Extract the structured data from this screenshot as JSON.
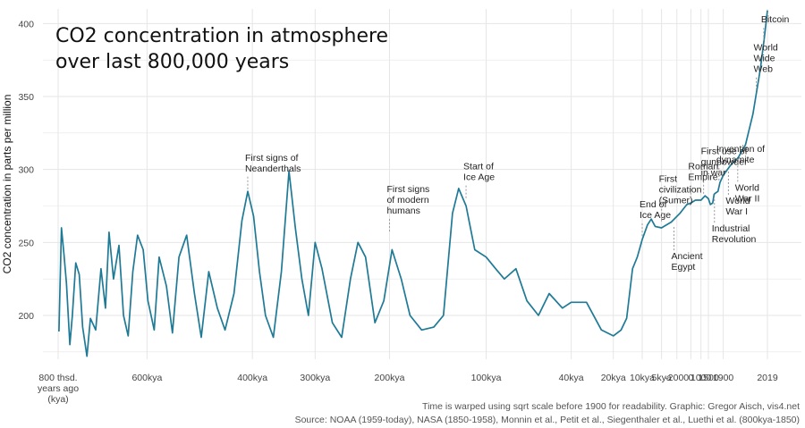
{
  "title_lines": [
    "CO2 concentration in atmosphere",
    "over last 800,000 years"
  ],
  "notes": {
    "line1": "Time is warped using sqrt scale before 1900 for readability. Graphic: Gregor Aisch, vis4.net",
    "line2": "Source: NOAA (1959-today), NASA (1850-1958), Monnin et al., Petit et al., Siegenthaler et al., Luethi et al. (800kya-1850)"
  },
  "colors": {
    "line": "#1f7a96",
    "grid": "#e6e6e6",
    "annotation_leader": "#999999"
  },
  "chart_data": {
    "type": "line",
    "title": "CO2 concentration in atmosphere over last 800,000 years",
    "xlabel": "",
    "ylabel": "CO2 concentration in parts per million",
    "ylim": [
      170,
      410
    ],
    "yticks": [
      200,
      250,
      300,
      350,
      400
    ],
    "grid": true,
    "x_scale_note": "sqrt scale of years before 1900, linear after 1900",
    "xticks": [
      {
        "x": -800000,
        "label": [
          "800 thsd.",
          "years ago",
          "(kya)"
        ]
      },
      {
        "x": -600000,
        "label": [
          "600kya"
        ]
      },
      {
        "x": -400000,
        "label": [
          "400kya"
        ]
      },
      {
        "x": -300000,
        "label": [
          "300kya"
        ]
      },
      {
        "x": -200000,
        "label": [
          "200kya"
        ]
      },
      {
        "x": -100000,
        "label": [
          "100kya"
        ]
      },
      {
        "x": -40000,
        "label": [
          "40kya"
        ]
      },
      {
        "x": -20000,
        "label": [
          "20kya"
        ]
      },
      {
        "x": -10000,
        "label": [
          "10kya"
        ]
      },
      {
        "x": -5000,
        "label": [
          "5kya"
        ]
      },
      {
        "x": -2000,
        "label": [
          "-2000"
        ]
      },
      {
        "x": 0,
        "label": [
          "0"
        ]
      },
      {
        "x": 1000,
        "label": [
          "1000"
        ]
      },
      {
        "x": 1500,
        "label": [
          "1500"
        ]
      },
      {
        "x": 1900,
        "label": [
          "1900"
        ]
      },
      {
        "x": 2019,
        "label": [
          "2019"
        ]
      }
    ],
    "series": [
      {
        "values": [
          [
            -798000,
            189
          ],
          [
            -792000,
            260
          ],
          [
            -786000,
            242
          ],
          [
            -780000,
            222
          ],
          [
            -772000,
            180
          ],
          [
            -766000,
            200
          ],
          [
            -758000,
            236
          ],
          [
            -750000,
            228
          ],
          [
            -742000,
            192
          ],
          [
            -732000,
            172
          ],
          [
            -724000,
            198
          ],
          [
            -712000,
            190
          ],
          [
            -700000,
            232
          ],
          [
            -690000,
            205
          ],
          [
            -682000,
            257
          ],
          [
            -672000,
            225
          ],
          [
            -660000,
            248
          ],
          [
            -650000,
            200
          ],
          [
            -640000,
            186
          ],
          [
            -630000,
            230
          ],
          [
            -620000,
            255
          ],
          [
            -608000,
            245
          ],
          [
            -598000,
            210
          ],
          [
            -585000,
            190
          ],
          [
            -575000,
            240
          ],
          [
            -560000,
            220
          ],
          [
            -548000,
            188
          ],
          [
            -535000,
            240
          ],
          [
            -520000,
            255
          ],
          [
            -505000,
            215
          ],
          [
            -492000,
            185
          ],
          [
            -478000,
            230
          ],
          [
            -462000,
            205
          ],
          [
            -448000,
            190
          ],
          [
            -432000,
            215
          ],
          [
            -418000,
            265
          ],
          [
            -408000,
            285
          ],
          [
            -398000,
            268
          ],
          [
            -388000,
            230
          ],
          [
            -378000,
            200
          ],
          [
            -365000,
            185
          ],
          [
            -352000,
            230
          ],
          [
            -340000,
            299
          ],
          [
            -330000,
            260
          ],
          [
            -320000,
            225
          ],
          [
            -310000,
            200
          ],
          [
            -300000,
            250
          ],
          [
            -290000,
            232
          ],
          [
            -275000,
            195
          ],
          [
            -262000,
            185
          ],
          [
            -250000,
            225
          ],
          [
            -240000,
            250
          ],
          [
            -230000,
            240
          ],
          [
            -218000,
            195
          ],
          [
            -207000,
            210
          ],
          [
            -197000,
            245
          ],
          [
            -186000,
            225
          ],
          [
            -176000,
            200
          ],
          [
            -163000,
            190
          ],
          [
            -150000,
            192
          ],
          [
            -140000,
            200
          ],
          [
            -131000,
            270
          ],
          [
            -125000,
            287
          ],
          [
            -118000,
            275
          ],
          [
            -110000,
            245
          ],
          [
            -100000,
            240
          ],
          [
            -92000,
            232
          ],
          [
            -85000,
            225
          ],
          [
            -76000,
            232
          ],
          [
            -68000,
            210
          ],
          [
            -60000,
            200
          ],
          [
            -53000,
            215
          ],
          [
            -45000,
            205
          ],
          [
            -40000,
            209
          ],
          [
            -32000,
            209
          ],
          [
            -25000,
            190
          ],
          [
            -20000,
            186
          ],
          [
            -17000,
            190
          ],
          [
            -15000,
            198
          ],
          [
            -13000,
            232
          ],
          [
            -11500,
            240
          ],
          [
            -10000,
            252
          ],
          [
            -8500,
            262
          ],
          [
            -7500,
            266
          ],
          [
            -6500,
            261
          ],
          [
            -5000,
            260
          ],
          [
            -3000,
            264
          ],
          [
            -1500,
            270
          ],
          [
            -500,
            276
          ],
          [
            0,
            277
          ],
          [
            500,
            279
          ],
          [
            1000,
            279
          ],
          [
            1300,
            282
          ],
          [
            1500,
            280
          ],
          [
            1600,
            276
          ],
          [
            1700,
            277
          ],
          [
            1750,
            283
          ],
          [
            1800,
            284
          ],
          [
            1850,
            285
          ],
          [
            1880,
            291
          ],
          [
            1900,
            296
          ],
          [
            1920,
            303
          ],
          [
            1940,
            308
          ],
          [
            1960,
            317
          ],
          [
            1980,
            338
          ],
          [
            2000,
            369
          ],
          [
            2010,
            389
          ],
          [
            2019,
            409
          ]
        ]
      }
    ],
    "annotations": [
      {
        "x": -408000,
        "y": 284,
        "text": [
          "First signs of",
          "Neanderthals"
        ],
        "dir": "up"
      },
      {
        "x": -200000,
        "y": 255,
        "text": [
          "First signs",
          "of modern",
          "humans"
        ],
        "dir": "up"
      },
      {
        "x": -118000,
        "y": 278,
        "text": [
          "Start of",
          "Ice Age"
        ],
        "dir": "up"
      },
      {
        "x": -10000,
        "y": 252,
        "text": [
          "End of",
          "Ice Age"
        ],
        "dir": "up"
      },
      {
        "x": -5000,
        "y": 262,
        "text": [
          "First",
          "civilization",
          "(Sumer)"
        ],
        "dir": "up"
      },
      {
        "x": -2500,
        "y": 263,
        "text": [
          "Ancient",
          "Egypt"
        ],
        "dir": "down"
      },
      {
        "x": 0,
        "y": 278,
        "text": [
          "Roman",
          "Empire"
        ],
        "dir": "up"
      },
      {
        "x": 1200,
        "y": 281,
        "text": [
          "First use of",
          "gunpowder",
          "in war"
        ],
        "dir": "up"
      },
      {
        "x": 1760,
        "y": 282,
        "text": [
          "Industrial",
          "Revolution"
        ],
        "dir": "down"
      },
      {
        "x": 1867,
        "y": 290,
        "text": [
          "Invention of",
          "dynamite"
        ],
        "dir": "up"
      },
      {
        "x": 1914,
        "y": 301,
        "text": [
          "World",
          "War I"
        ],
        "dir": "down"
      },
      {
        "x": 1939,
        "y": 310,
        "text": [
          "World",
          "War II"
        ],
        "dir": "down"
      },
      {
        "x": 1989,
        "y": 352,
        "text": [
          "World",
          "Wide",
          "Web"
        ],
        "dir": "up"
      },
      {
        "x": 2009,
        "y": 386,
        "text": [
          "Bitcoin"
        ],
        "dir": "up"
      }
    ]
  }
}
